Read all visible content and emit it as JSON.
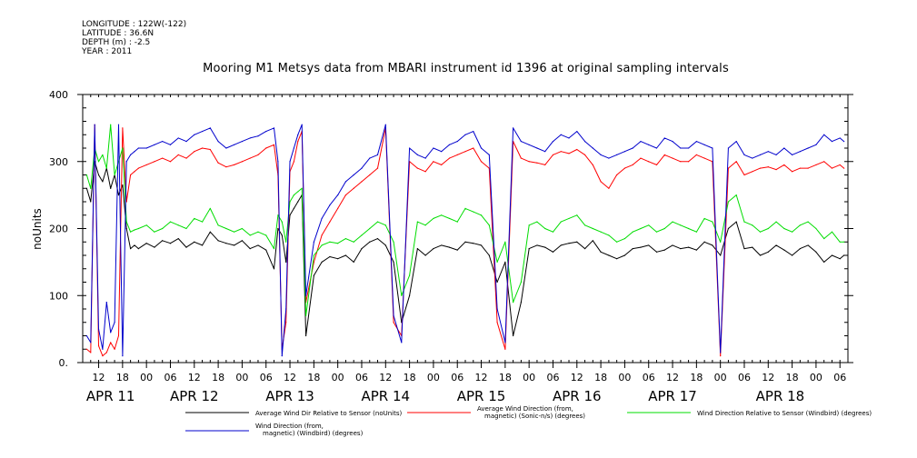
{
  "meta": {
    "longitude": "LONGITUDE : 122W(-122)",
    "latitude": "LATITUDE : 36.6N",
    "depth": "DEPTH (m) : -2.5",
    "year": "YEAR : 2011"
  },
  "chart_data": {
    "type": "line",
    "title": "Mooring M1 Metsys data from MBARI instrument id 1396 at original sampling intervals",
    "ylabel": "noUnits",
    "ylim": [
      0,
      400
    ],
    "yticks": [
      0,
      100,
      200,
      300,
      400
    ],
    "ytick_labels": [
      "0.",
      "100",
      "200",
      "300",
      "400"
    ],
    "xlim_hours": [
      -16,
      176
    ],
    "x_hour_ticks": [
      {
        "h": -12,
        "label": "12"
      },
      {
        "h": -6,
        "label": "18"
      },
      {
        "h": 0,
        "label": "00"
      },
      {
        "h": 6,
        "label": "06"
      },
      {
        "h": 12,
        "label": "12"
      },
      {
        "h": 18,
        "label": "18"
      },
      {
        "h": 24,
        "label": "00"
      },
      {
        "h": 30,
        "label": "06"
      },
      {
        "h": 36,
        "label": "12"
      },
      {
        "h": 42,
        "label": "18"
      },
      {
        "h": 48,
        "label": "00"
      },
      {
        "h": 54,
        "label": "06"
      },
      {
        "h": 60,
        "label": "12"
      },
      {
        "h": 66,
        "label": "18"
      },
      {
        "h": 72,
        "label": "00"
      },
      {
        "h": 78,
        "label": "06"
      },
      {
        "h": 84,
        "label": "12"
      },
      {
        "h": 90,
        "label": "18"
      },
      {
        "h": 96,
        "label": "00"
      },
      {
        "h": 102,
        "label": "06"
      },
      {
        "h": 108,
        "label": "12"
      },
      {
        "h": 114,
        "label": "18"
      },
      {
        "h": 120,
        "label": "00"
      },
      {
        "h": 126,
        "label": "06"
      },
      {
        "h": 132,
        "label": "12"
      },
      {
        "h": 138,
        "label": "18"
      },
      {
        "h": 144,
        "label": "00"
      },
      {
        "h": 150,
        "label": "06"
      },
      {
        "h": 156,
        "label": "12"
      },
      {
        "h": 162,
        "label": "18"
      },
      {
        "h": 168,
        "label": "00"
      },
      {
        "h": 174,
        "label": "06"
      }
    ],
    "x_day_labels": [
      {
        "h": -9,
        "label": "APR 11"
      },
      {
        "h": 12,
        "label": "APR 12"
      },
      {
        "h": 36,
        "label": "APR 13"
      },
      {
        "h": 60,
        "label": "APR 14"
      },
      {
        "h": 84,
        "label": "APR 15"
      },
      {
        "h": 108,
        "label": "APR 16"
      },
      {
        "h": 132,
        "label": "APR 17"
      },
      {
        "h": 159,
        "label": "APR 18"
      }
    ],
    "series": [
      {
        "name": "Average Wind Dir Relative to Sensor (noUnits)",
        "color": "#000000",
        "x": [
          -15,
          -14,
          -13,
          -12,
          -11,
          -10,
          -9,
          -8,
          -7,
          -6,
          -5,
          -4,
          -3,
          -2,
          0,
          2,
          4,
          6,
          8,
          10,
          12,
          14,
          16,
          18,
          20,
          22,
          24,
          26,
          28,
          30,
          32,
          33,
          34,
          35,
          36,
          37,
          38,
          39,
          40,
          42,
          44,
          46,
          48,
          50,
          52,
          54,
          56,
          58,
          60,
          62,
          64,
          66,
          68,
          70,
          72,
          74,
          76,
          78,
          80,
          82,
          84,
          86,
          88,
          90,
          92,
          94,
          96,
          98,
          100,
          102,
          104,
          106,
          108,
          110,
          112,
          114,
          116,
          118,
          120,
          122,
          124,
          126,
          128,
          130,
          132,
          134,
          136,
          138,
          140,
          142,
          144,
          146,
          148,
          150,
          152,
          154,
          156,
          158,
          160,
          162,
          164,
          166,
          168,
          170,
          172,
          174,
          175
        ],
        "values": [
          260,
          240,
          300,
          280,
          270,
          290,
          260,
          280,
          250,
          265,
          200,
          170,
          175,
          170,
          178,
          172,
          182,
          178,
          185,
          172,
          180,
          175,
          195,
          182,
          178,
          175,
          182,
          170,
          175,
          168,
          140,
          200,
          190,
          150,
          220,
          230,
          240,
          250,
          40,
          130,
          150,
          158,
          155,
          160,
          150,
          170,
          180,
          185,
          175,
          150,
          60,
          100,
          170,
          160,
          170,
          175,
          172,
          168,
          180,
          178,
          175,
          160,
          120,
          150,
          40,
          90,
          170,
          175,
          172,
          165,
          175,
          178,
          180,
          170,
          182,
          165,
          160,
          155,
          160,
          170,
          172,
          175,
          165,
          168,
          175,
          170,
          172,
          168,
          180,
          175,
          160,
          200,
          210,
          170,
          172,
          160,
          165,
          175,
          168,
          160,
          170,
          175,
          165,
          150,
          160,
          155,
          160
        ]
      },
      {
        "name": "Average Wind Direction (from, magnetic) (Sonic-n/s) (degrees)",
        "color": "#ff0000",
        "x": [
          -15,
          -14,
          -13,
          -12,
          -11,
          -10,
          -9,
          -8,
          -7,
          -6,
          -5,
          -4,
          -3,
          -2,
          0,
          2,
          4,
          6,
          8,
          10,
          12,
          14,
          16,
          18,
          20,
          22,
          24,
          26,
          28,
          30,
          32,
          33,
          34,
          35,
          36,
          37,
          38,
          39,
          40,
          42,
          44,
          46,
          48,
          50,
          52,
          54,
          56,
          58,
          60,
          62,
          64,
          66,
          68,
          70,
          72,
          74,
          76,
          78,
          80,
          82,
          84,
          86,
          88,
          90,
          92,
          94,
          96,
          98,
          100,
          102,
          104,
          106,
          108,
          110,
          112,
          114,
          116,
          118,
          120,
          122,
          124,
          126,
          128,
          130,
          132,
          134,
          136,
          138,
          140,
          142,
          144,
          146,
          148,
          150,
          152,
          154,
          156,
          158,
          160,
          162,
          164,
          166,
          168,
          170,
          172,
          174,
          175
        ],
        "values": [
          20,
          15,
          355,
          25,
          10,
          15,
          30,
          20,
          40,
          350,
          240,
          280,
          285,
          290,
          295,
          300,
          305,
          300,
          310,
          305,
          315,
          320,
          318,
          298,
          292,
          295,
          300,
          305,
          310,
          320,
          325,
          280,
          20,
          60,
          285,
          300,
          330,
          345,
          90,
          150,
          190,
          210,
          230,
          250,
          260,
          270,
          280,
          290,
          350,
          60,
          40,
          300,
          290,
          285,
          300,
          295,
          305,
          310,
          315,
          320,
          300,
          290,
          60,
          20,
          330,
          305,
          300,
          298,
          295,
          310,
          315,
          312,
          318,
          310,
          295,
          270,
          260,
          280,
          290,
          295,
          305,
          300,
          295,
          310,
          305,
          300,
          300,
          310,
          305,
          300,
          10,
          290,
          300,
          280,
          285,
          290,
          292,
          288,
          295,
          285,
          290,
          290,
          295,
          300,
          290,
          295,
          290
        ]
      },
      {
        "name": "Wind Direction Relative to Sensor (Windbird) (degrees)",
        "color": "#00dd00",
        "x": [
          -15,
          -14,
          -13,
          -12,
          -11,
          -10,
          -9,
          -8,
          -7,
          -6,
          -5,
          -4,
          -3,
          -2,
          0,
          2,
          4,
          6,
          8,
          10,
          12,
          14,
          16,
          18,
          20,
          22,
          24,
          26,
          28,
          30,
          32,
          33,
          34,
          35,
          36,
          37,
          38,
          39,
          40,
          42,
          44,
          46,
          48,
          50,
          52,
          54,
          56,
          58,
          60,
          62,
          64,
          66,
          68,
          70,
          72,
          74,
          76,
          78,
          80,
          82,
          84,
          86,
          88,
          90,
          92,
          94,
          96,
          98,
          100,
          102,
          104,
          106,
          108,
          110,
          112,
          114,
          116,
          118,
          120,
          122,
          124,
          126,
          128,
          130,
          132,
          134,
          136,
          138,
          140,
          142,
          144,
          146,
          148,
          150,
          152,
          154,
          156,
          158,
          160,
          162,
          164,
          166,
          168,
          170,
          172,
          174,
          175
        ],
        "values": [
          280,
          260,
          320,
          300,
          310,
          290,
          355,
          280,
          300,
          320,
          210,
          195,
          198,
          200,
          205,
          195,
          200,
          210,
          205,
          200,
          215,
          210,
          230,
          205,
          200,
          195,
          200,
          190,
          195,
          190,
          170,
          220,
          210,
          180,
          240,
          250,
          255,
          260,
          70,
          160,
          175,
          180,
          178,
          185,
          180,
          190,
          200,
          210,
          205,
          180,
          100,
          130,
          210,
          205,
          215,
          220,
          215,
          210,
          230,
          225,
          220,
          205,
          150,
          180,
          90,
          120,
          205,
          210,
          200,
          195,
          210,
          215,
          220,
          205,
          200,
          195,
          190,
          180,
          185,
          195,
          200,
          205,
          195,
          200,
          210,
          205,
          200,
          195,
          215,
          210,
          180,
          240,
          250,
          210,
          205,
          195,
          200,
          210,
          200,
          195,
          205,
          210,
          200,
          185,
          195,
          180,
          180
        ]
      },
      {
        "name": "Wind Direction (from, magnetic) (Windbird) (degrees)",
        "color": "#0000cc",
        "x": [
          -15,
          -14,
          -13,
          -12,
          -11,
          -10,
          -9,
          -8,
          -7,
          -6,
          -5,
          -4,
          -3,
          -2,
          0,
          2,
          4,
          6,
          8,
          10,
          12,
          14,
          16,
          18,
          20,
          22,
          24,
          26,
          28,
          30,
          32,
          33,
          34,
          35,
          36,
          37,
          38,
          39,
          40,
          42,
          44,
          46,
          48,
          50,
          52,
          54,
          56,
          58,
          60,
          62,
          64,
          66,
          68,
          70,
          72,
          74,
          76,
          78,
          80,
          82,
          84,
          86,
          88,
          90,
          92,
          94,
          96,
          98,
          100,
          102,
          104,
          106,
          108,
          110,
          112,
          114,
          116,
          118,
          120,
          122,
          124,
          126,
          128,
          130,
          132,
          134,
          136,
          138,
          140,
          142,
          144,
          146,
          148,
          150,
          152,
          154,
          156,
          158,
          160,
          162,
          164,
          166,
          168,
          170,
          172,
          174,
          175
        ],
        "values": [
          40,
          30,
          355,
          50,
          20,
          90,
          45,
          60,
          355,
          10,
          300,
          310,
          315,
          320,
          320,
          325,
          330,
          325,
          335,
          330,
          340,
          345,
          350,
          330,
          320,
          325,
          330,
          335,
          338,
          345,
          350,
          300,
          10,
          80,
          300,
          320,
          340,
          355,
          100,
          180,
          215,
          235,
          250,
          270,
          280,
          290,
          305,
          310,
          355,
          70,
          30,
          320,
          310,
          305,
          320,
          315,
          325,
          330,
          340,
          345,
          320,
          310,
          80,
          30,
          350,
          330,
          325,
          320,
          315,
          330,
          340,
          335,
          345,
          330,
          320,
          310,
          305,
          310,
          315,
          320,
          330,
          325,
          320,
          335,
          330,
          320,
          320,
          330,
          325,
          320,
          15,
          320,
          330,
          310,
          305,
          310,
          315,
          310,
          320,
          310,
          315,
          320,
          325,
          340,
          330,
          335,
          330
        ]
      }
    ],
    "legend": [
      {
        "label_lines": [
          "Average Wind Dir Relative to Sensor (noUnits)"
        ],
        "color": "#000000"
      },
      {
        "label_lines": [
          "Average Wind Direction (from,",
          "magnetic) (Sonic-n/s) (degrees)"
        ],
        "color": "#ff0000"
      },
      {
        "label_lines": [
          "Wind Direction Relative to Sensor (Windbird) (degrees)"
        ],
        "color": "#00dd00"
      },
      {
        "label_lines": [
          "Wind Direction (from,",
          "magnetic) (Windbird) (degrees)"
        ],
        "color": "#0000cc"
      }
    ]
  }
}
